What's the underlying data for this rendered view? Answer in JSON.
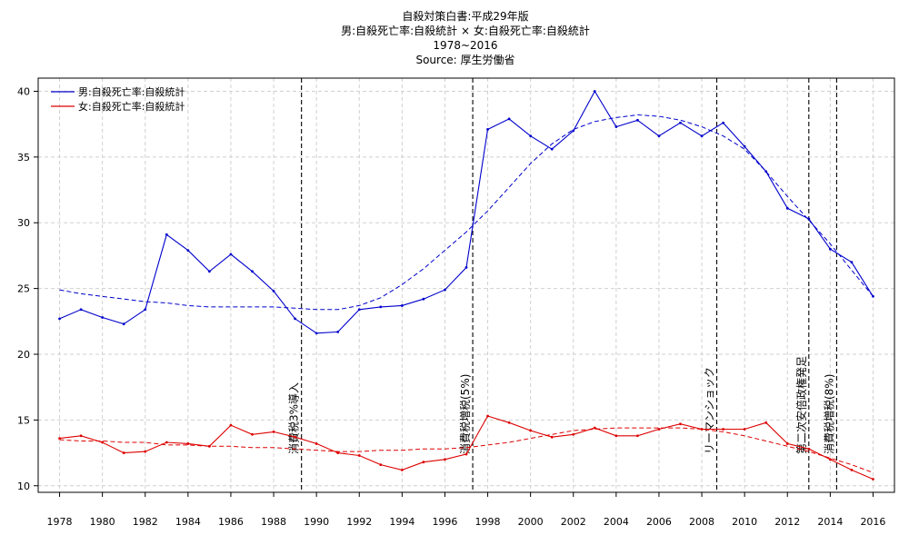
{
  "chart_data": {
    "type": "line",
    "title_lines": [
      "自殺対策白書:平成29年版",
      "男:自殺死亡率:自殺統計 × 女:自殺死亡率:自殺統計",
      "1978~2016",
      "Source: 厚生労働省"
    ],
    "xlim": [
      1977,
      2017
    ],
    "ylim": [
      9.5,
      41
    ],
    "x_ticks": [
      1978,
      1980,
      1982,
      1984,
      1986,
      1988,
      1990,
      1992,
      1994,
      1996,
      1998,
      2000,
      2002,
      2004,
      2006,
      2008,
      2010,
      2012,
      2014,
      2016
    ],
    "y_ticks": [
      10,
      15,
      20,
      25,
      30,
      35,
      40
    ],
    "grid": true,
    "legend_position": "top-left",
    "x": [
      1978,
      1979,
      1980,
      1981,
      1982,
      1983,
      1984,
      1985,
      1986,
      1987,
      1988,
      1989,
      1990,
      1991,
      1992,
      1993,
      1994,
      1995,
      1996,
      1997,
      1998,
      1999,
      2000,
      2001,
      2002,
      2003,
      2004,
      2005,
      2006,
      2007,
      2008,
      2009,
      2010,
      2011,
      2012,
      2013,
      2014,
      2015,
      2016
    ],
    "series": [
      {
        "name": "男:自殺死亡率:自殺統計",
        "color": "#0000cc",
        "values": [
          22.7,
          23.4,
          22.8,
          22.3,
          23.4,
          29.1,
          27.9,
          26.3,
          27.6,
          26.3,
          24.8,
          22.7,
          21.6,
          21.7,
          23.4,
          23.6,
          23.7,
          24.2,
          24.9,
          26.6,
          37.1,
          37.9,
          36.6,
          35.6,
          37.0,
          40.0,
          37.3,
          37.8,
          36.6,
          37.6,
          36.6,
          37.6,
          35.8,
          33.9,
          31.1,
          30.3,
          28.0,
          27.0,
          24.4
        ],
        "trend": [
          24.9,
          24.6,
          24.4,
          24.2,
          24.0,
          23.9,
          23.7,
          23.6,
          23.6,
          23.6,
          23.6,
          23.5,
          23.4,
          23.4,
          23.7,
          24.3,
          25.3,
          26.5,
          27.9,
          29.3,
          30.9,
          32.7,
          34.5,
          36.0,
          37.1,
          37.7,
          38.0,
          38.2,
          38.1,
          37.8,
          37.3,
          36.6,
          35.6,
          33.9,
          32.0,
          30.2,
          28.4,
          26.4,
          24.4
        ]
      },
      {
        "name": "女:自殺死亡率:自殺統計",
        "color": "#dd0000",
        "values": [
          13.6,
          13.8,
          13.3,
          12.5,
          12.6,
          13.3,
          13.2,
          13.0,
          14.6,
          13.9,
          14.1,
          13.7,
          13.2,
          12.5,
          12.3,
          11.6,
          11.2,
          11.8,
          12.0,
          12.4,
          15.3,
          14.8,
          14.2,
          13.7,
          13.9,
          14.4,
          13.8,
          13.8,
          14.3,
          14.7,
          14.3,
          14.3,
          14.3,
          14.8,
          13.2,
          12.8,
          12.0,
          11.2,
          10.5
        ],
        "trend": [
          13.5,
          13.4,
          13.4,
          13.3,
          13.3,
          13.1,
          13.1,
          13.0,
          13.0,
          12.9,
          12.9,
          12.8,
          12.7,
          12.6,
          12.6,
          12.7,
          12.7,
          12.8,
          12.8,
          12.9,
          13.1,
          13.3,
          13.6,
          13.9,
          14.2,
          14.3,
          14.4,
          14.4,
          14.4,
          14.4,
          14.3,
          14.1,
          13.8,
          13.4,
          13.0,
          12.6,
          12.1,
          11.6,
          11.0
        ]
      }
    ],
    "annotations": [
      {
        "x": 1989.3,
        "label": "消費税3%導入"
      },
      {
        "x": 1997.3,
        "label": "消費税増税(5%)"
      },
      {
        "x": 2008.7,
        "label": "リーマンショック"
      },
      {
        "x": 2013.0,
        "label": "第二次安倍政権発足"
      },
      {
        "x": 2014.3,
        "label": "消費税増税(8%)"
      }
    ]
  }
}
